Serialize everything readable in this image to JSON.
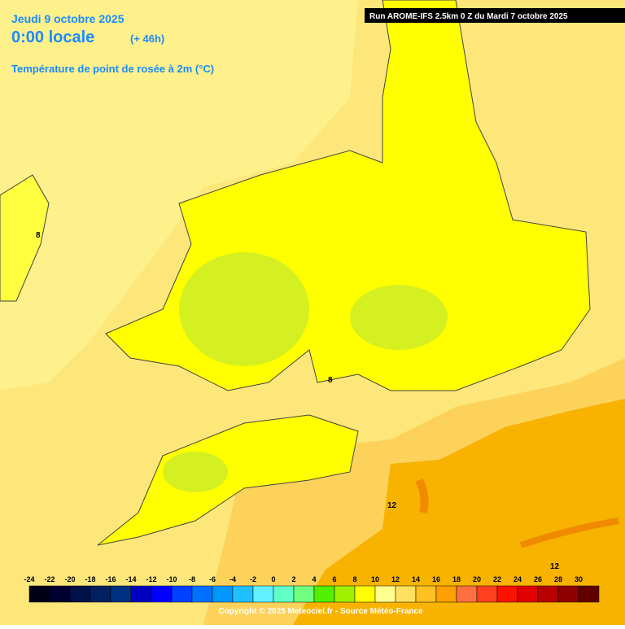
{
  "header": {
    "date": "Jeudi 9 octobre 2025",
    "time": "0:00 locale",
    "lead": "(+ 46h)",
    "parameter": "Température de point de rosée à 2m (°C)",
    "run": "Run AROME-IFS 2.5km 0 Z du Mardi 7 octobre 2025"
  },
  "contour_labels": [
    "8",
    "8",
    "12",
    "12"
  ],
  "legend": {
    "labels": [
      -24,
      -22,
      -20,
      -18,
      -16,
      -14,
      -12,
      -10,
      -8,
      -6,
      -4,
      -2,
      0,
      2,
      4,
      6,
      8,
      10,
      12,
      14,
      16,
      18,
      20,
      22,
      24,
      26,
      28,
      30
    ],
    "colors": [
      "#000018",
      "#000030",
      "#001048",
      "#002060",
      "#003080",
      "#0000c0",
      "#0000ff",
      "#0040ff",
      "#0070ff",
      "#0098ff",
      "#20c0ff",
      "#60f0ff",
      "#60ffc8",
      "#70ff80",
      "#50f000",
      "#a0f000",
      "#ffff00",
      "#ffff90",
      "#ffe060",
      "#ffc020",
      "#ffa000",
      "#ff7040",
      "#ff4020",
      "#ff1000",
      "#e00000",
      "#b80000",
      "#900000",
      "#600000"
    ]
  },
  "footer": {
    "copyright": "Copyright © 2025 Meteociel.fr - Source Météo-France"
  }
}
